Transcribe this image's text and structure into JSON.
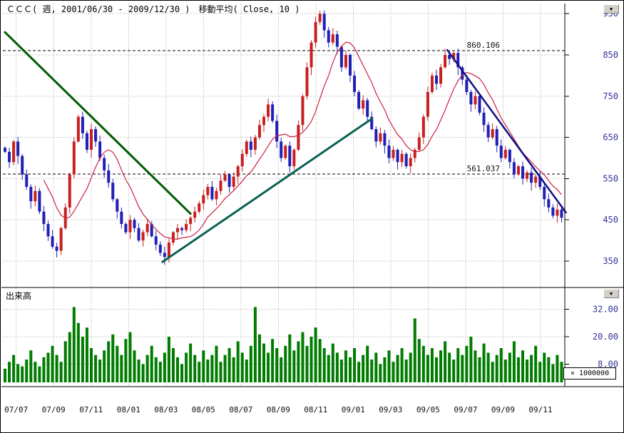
{
  "window": {
    "title": "ＣＣＣ( 週, 2001/06/30 - 2009/12/30 )　移動平均( Close, 10 )"
  },
  "panels": {
    "volume_label": "出来高",
    "volume_unit": "× 1000000"
  },
  "icons": {
    "scroll_down": "▼"
  },
  "colors": {
    "up_candle": "#c82020",
    "down_candle": "#2020b4",
    "ma_line": "#cc2040",
    "volume_bar": "#007c00",
    "grid": "#aaaaaa",
    "frame": "#000000",
    "axis_text": "#333399",
    "xaxis_text": "#111111",
    "hline": "#000000",
    "trend_green": "#005c00",
    "trend_teal": "#0a6152",
    "trend_navy": "#101088"
  },
  "chart_data": {
    "type": "candlestick",
    "title": "ＣＣＣ weekly with 10-week moving average of Close",
    "period_label": "週",
    "ma": {
      "type": "SMA",
      "period": 10,
      "source": "Close"
    },
    "x_ticks": [
      "07/07",
      "07/09",
      "07/11",
      "08/01",
      "08/03",
      "08/05",
      "08/07",
      "08/09",
      "08/11",
      "09/01",
      "09/03",
      "09/05",
      "09/07",
      "09/09",
      "09/11"
    ],
    "price_axis_ticks": [
      950,
      850,
      750,
      650,
      550,
      450,
      350
    ],
    "volume_axis_ticks": [
      "32.00",
      "20.00",
      "8.00"
    ],
    "price_range": [
      340,
      960
    ],
    "closes": [
      615,
      590,
      640,
      605,
      560,
      530,
      495,
      520,
      470,
      440,
      410,
      385,
      375,
      430,
      480,
      560,
      640,
      700,
      660,
      620,
      670,
      640,
      600,
      570,
      540,
      500,
      470,
      440,
      420,
      450,
      430,
      400,
      420,
      440,
      410,
      390,
      370,
      360,
      395,
      420,
      430,
      425,
      440,
      455,
      470,
      490,
      510,
      530,
      500,
      520,
      545,
      560,
      530,
      555,
      580,
      610,
      640,
      620,
      650,
      680,
      700,
      730,
      690,
      640,
      600,
      630,
      580,
      620,
      680,
      750,
      820,
      880,
      930,
      950,
      910,
      880,
      900,
      870,
      820,
      850,
      800,
      760,
      720,
      740,
      700,
      670,
      640,
      660,
      630,
      600,
      620,
      590,
      610,
      580,
      600,
      620,
      650,
      700,
      760,
      800,
      780,
      820,
      850,
      840,
      855,
      820,
      790,
      760,
      730,
      750,
      710,
      680,
      650,
      670,
      630,
      600,
      620,
      590,
      560,
      580,
      550,
      565,
      540,
      555,
      530,
      500,
      480,
      460,
      475,
      455
    ],
    "volumes": [
      6,
      9,
      12,
      8,
      7,
      10,
      14,
      9,
      7,
      11,
      13,
      16,
      12,
      9,
      18,
      22,
      33,
      26,
      20,
      24,
      15,
      12,
      10,
      14,
      18,
      21,
      16,
      12,
      19,
      22,
      14,
      10,
      8,
      12,
      16,
      11,
      9,
      13,
      20,
      15,
      11,
      8,
      13,
      17,
      12,
      9,
      14,
      10,
      12,
      16,
      9,
      12,
      15,
      11,
      18,
      13,
      10,
      16,
      33,
      21,
      17,
      13,
      19,
      15,
      11,
      16,
      21,
      14,
      18,
      22,
      16,
      20,
      24,
      19,
      15,
      12,
      17,
      13,
      10,
      14,
      11,
      15,
      9,
      12,
      16,
      10,
      13,
      8,
      11,
      14,
      9,
      12,
      15,
      10,
      13,
      28,
      19,
      16,
      12,
      15,
      11,
      14,
      18,
      13,
      10,
      15,
      12,
      16,
      20,
      14,
      11,
      17,
      13,
      9,
      12,
      15,
      10,
      13,
      18,
      11,
      14,
      10,
      12,
      16,
      9,
      13,
      11,
      8,
      12,
      9
    ],
    "hlines": [
      {
        "value": 860.106,
        "label": "860.106"
      },
      {
        "value": 561.037,
        "label": "561.037"
      }
    ],
    "trendlines": [
      {
        "from_week": 0,
        "from_price": 905,
        "to_week": 43,
        "to_price": 465,
        "color_key": "trend_green",
        "width": 3
      },
      {
        "from_week": 36.5,
        "from_price": 348,
        "to_week": 85,
        "to_price": 695,
        "color_key": "trend_teal",
        "width": 3
      },
      {
        "from_week": 102.5,
        "from_price": 862,
        "to_week": 130,
        "to_price": 468,
        "color_key": "trend_navy",
        "width": 2.5
      }
    ]
  }
}
